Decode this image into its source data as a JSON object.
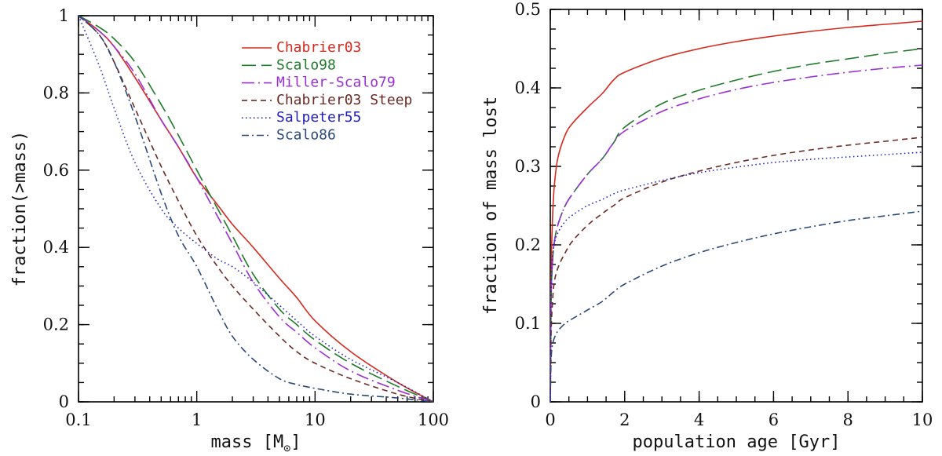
{
  "chart_data": [
    {
      "type": "line",
      "xscale": "log",
      "xlabel": "mass [M",
      "xlabel_symbol": "⊙",
      "xlabel_suffix": "]",
      "ylabel": "fraction(>mass)",
      "xlim": [
        0.1,
        100
      ],
      "ylim": [
        0,
        1
      ],
      "xticks": [
        0.1,
        1,
        10,
        100
      ],
      "xtick_labels": [
        "0.1",
        "1",
        "10",
        "100"
      ],
      "yticks": [
        0,
        0.2,
        0.4,
        0.6,
        0.8,
        1
      ],
      "ytick_labels": [
        "0",
        "0.2",
        "0.4",
        "0.6",
        "0.8",
        "1"
      ],
      "legend_position": "top-right",
      "series": [
        {
          "name": "Chabrier03",
          "color": "#d62a1e",
          "dash": "solid",
          "x": [
            0.1,
            0.15,
            0.2,
            0.3,
            0.5,
            0.7,
            1,
            1.5,
            2,
            3,
            5,
            7,
            10,
            20,
            50,
            100
          ],
          "y": [
            1.0,
            0.96,
            0.92,
            0.84,
            0.73,
            0.66,
            0.58,
            0.51,
            0.46,
            0.4,
            0.32,
            0.27,
            0.21,
            0.13,
            0.05,
            0.0
          ]
        },
        {
          "name": "Scalo98",
          "color": "#1f7a2a",
          "dash": "long-dash",
          "x": [
            0.1,
            0.15,
            0.2,
            0.3,
            0.5,
            0.7,
            1,
            1.5,
            2,
            3,
            5,
            7,
            10,
            20,
            50,
            100
          ],
          "y": [
            1.0,
            0.97,
            0.94,
            0.88,
            0.77,
            0.69,
            0.6,
            0.5,
            0.43,
            0.33,
            0.24,
            0.2,
            0.16,
            0.1,
            0.04,
            0.0
          ]
        },
        {
          "name": "Miller-Scalo79",
          "color": "#9a2fd6",
          "dash": "long-dash-dot",
          "x": [
            0.1,
            0.15,
            0.2,
            0.3,
            0.5,
            0.7,
            1,
            1.5,
            2,
            3,
            5,
            7,
            10,
            20,
            50,
            100
          ],
          "y": [
            1.0,
            0.96,
            0.92,
            0.85,
            0.73,
            0.66,
            0.58,
            0.48,
            0.41,
            0.31,
            0.22,
            0.18,
            0.14,
            0.08,
            0.03,
            0.0
          ]
        },
        {
          "name": "Chabrier03 Steep",
          "color": "#6b2a24",
          "dash": "short-dash",
          "x": [
            0.1,
            0.15,
            0.2,
            0.3,
            0.5,
            0.7,
            1,
            1.5,
            2,
            3,
            5,
            7,
            10,
            20,
            50,
            100
          ],
          "y": [
            1.0,
            0.95,
            0.88,
            0.76,
            0.61,
            0.52,
            0.43,
            0.35,
            0.3,
            0.24,
            0.17,
            0.13,
            0.1,
            0.06,
            0.02,
            0.0
          ]
        },
        {
          "name": "Salpeter55",
          "color": "#2020c0",
          "dash": "dotted",
          "x": [
            0.1,
            0.15,
            0.2,
            0.3,
            0.5,
            0.7,
            1,
            1.5,
            2,
            3,
            5,
            7,
            10,
            20,
            50,
            100
          ],
          "y": [
            1.0,
            0.87,
            0.76,
            0.62,
            0.5,
            0.45,
            0.41,
            0.37,
            0.35,
            0.31,
            0.25,
            0.21,
            0.17,
            0.11,
            0.05,
            0.0
          ]
        },
        {
          "name": "Scalo86",
          "color": "#2a4a7a",
          "dash": "dash-dot",
          "x": [
            0.1,
            0.15,
            0.2,
            0.3,
            0.5,
            0.7,
            1,
            1.5,
            2,
            3,
            5,
            7,
            10,
            20,
            50,
            100
          ],
          "y": [
            1.0,
            0.95,
            0.88,
            0.74,
            0.54,
            0.43,
            0.35,
            0.24,
            0.17,
            0.11,
            0.06,
            0.045,
            0.035,
            0.02,
            0.01,
            0.0
          ]
        }
      ]
    },
    {
      "type": "line",
      "xscale": "linear",
      "xlabel": "population age [Gyr]",
      "ylabel": "fraction of mass lost",
      "xlim": [
        0,
        10
      ],
      "ylim": [
        0,
        0.5
      ],
      "xticks": [
        0,
        2,
        4,
        6,
        8,
        10
      ],
      "xtick_labels": [
        "0",
        "2",
        "4",
        "6",
        "8",
        "10"
      ],
      "yticks": [
        0,
        0.1,
        0.2,
        0.3,
        0.4,
        0.5
      ],
      "ytick_labels": [
        "0",
        "0.1",
        "0.2",
        "0.3",
        "0.4",
        "0.5"
      ],
      "series": [
        {
          "name": "Chabrier03",
          "color": "#d62a1e",
          "dash": "solid",
          "x": [
            0,
            0.02,
            0.05,
            0.1,
            0.2,
            0.4,
            0.6,
            1.0,
            1.4,
            1.7,
            2.0,
            3.0,
            4.0,
            5.0,
            6.0,
            7.0,
            8.0,
            9.0,
            10.0
          ],
          "y": [
            0.0,
            0.15,
            0.22,
            0.27,
            0.31,
            0.34,
            0.355,
            0.375,
            0.393,
            0.41,
            0.42,
            0.438,
            0.45,
            0.459,
            0.466,
            0.472,
            0.477,
            0.481,
            0.485
          ]
        },
        {
          "name": "Scalo98",
          "color": "#1f7a2a",
          "dash": "long-dash",
          "x": [
            0,
            0.02,
            0.05,
            0.1,
            0.2,
            0.4,
            0.6,
            1.0,
            1.4,
            1.7,
            2.0,
            3.0,
            4.0,
            5.0,
            6.0,
            7.0,
            8.0,
            9.0,
            10.0
          ],
          "y": [
            0.0,
            0.12,
            0.17,
            0.2,
            0.225,
            0.25,
            0.265,
            0.29,
            0.31,
            0.33,
            0.35,
            0.38,
            0.397,
            0.41,
            0.421,
            0.43,
            0.437,
            0.444,
            0.45
          ]
        },
        {
          "name": "Miller-Scalo79",
          "color": "#9a2fd6",
          "dash": "long-dash-dot",
          "x": [
            0,
            0.02,
            0.05,
            0.1,
            0.2,
            0.4,
            0.6,
            1.0,
            1.4,
            1.7,
            2.0,
            3.0,
            4.0,
            5.0,
            6.0,
            7.0,
            8.0,
            9.0,
            10.0
          ],
          "y": [
            0.0,
            0.12,
            0.17,
            0.2,
            0.225,
            0.25,
            0.265,
            0.29,
            0.31,
            0.33,
            0.345,
            0.37,
            0.386,
            0.398,
            0.407,
            0.414,
            0.42,
            0.425,
            0.429
          ]
        },
        {
          "name": "Chabrier03 Steep",
          "color": "#6b2a24",
          "dash": "short-dash",
          "x": [
            0,
            0.02,
            0.05,
            0.1,
            0.2,
            0.4,
            0.6,
            1.0,
            1.4,
            1.7,
            2.0,
            3.0,
            4.0,
            5.0,
            6.0,
            7.0,
            8.0,
            9.0,
            10.0
          ],
          "y": [
            0.0,
            0.08,
            0.12,
            0.15,
            0.17,
            0.19,
            0.205,
            0.225,
            0.24,
            0.25,
            0.26,
            0.28,
            0.294,
            0.305,
            0.314,
            0.321,
            0.327,
            0.332,
            0.337
          ]
        },
        {
          "name": "Salpeter55",
          "color": "#2020c0",
          "dash": "dotted",
          "x": [
            0,
            0.02,
            0.05,
            0.1,
            0.2,
            0.4,
            0.6,
            1.0,
            1.4,
            1.7,
            2.0,
            3.0,
            4.0,
            5.0,
            6.0,
            7.0,
            8.0,
            9.0,
            10.0
          ],
          "y": [
            0.0,
            0.14,
            0.18,
            0.2,
            0.215,
            0.23,
            0.238,
            0.25,
            0.258,
            0.265,
            0.27,
            0.282,
            0.292,
            0.299,
            0.305,
            0.309,
            0.312,
            0.315,
            0.318
          ]
        },
        {
          "name": "Scalo86",
          "color": "#2a4a7a",
          "dash": "dash-dot",
          "x": [
            0,
            0.02,
            0.05,
            0.1,
            0.2,
            0.4,
            0.6,
            1.0,
            1.4,
            1.7,
            2.0,
            3.0,
            4.0,
            5.0,
            6.0,
            7.0,
            8.0,
            9.0,
            10.0
          ],
          "y": [
            0.0,
            0.05,
            0.07,
            0.08,
            0.09,
            0.1,
            0.106,
            0.117,
            0.128,
            0.14,
            0.15,
            0.173,
            0.19,
            0.203,
            0.214,
            0.223,
            0.231,
            0.237,
            0.243
          ]
        }
      ]
    }
  ]
}
